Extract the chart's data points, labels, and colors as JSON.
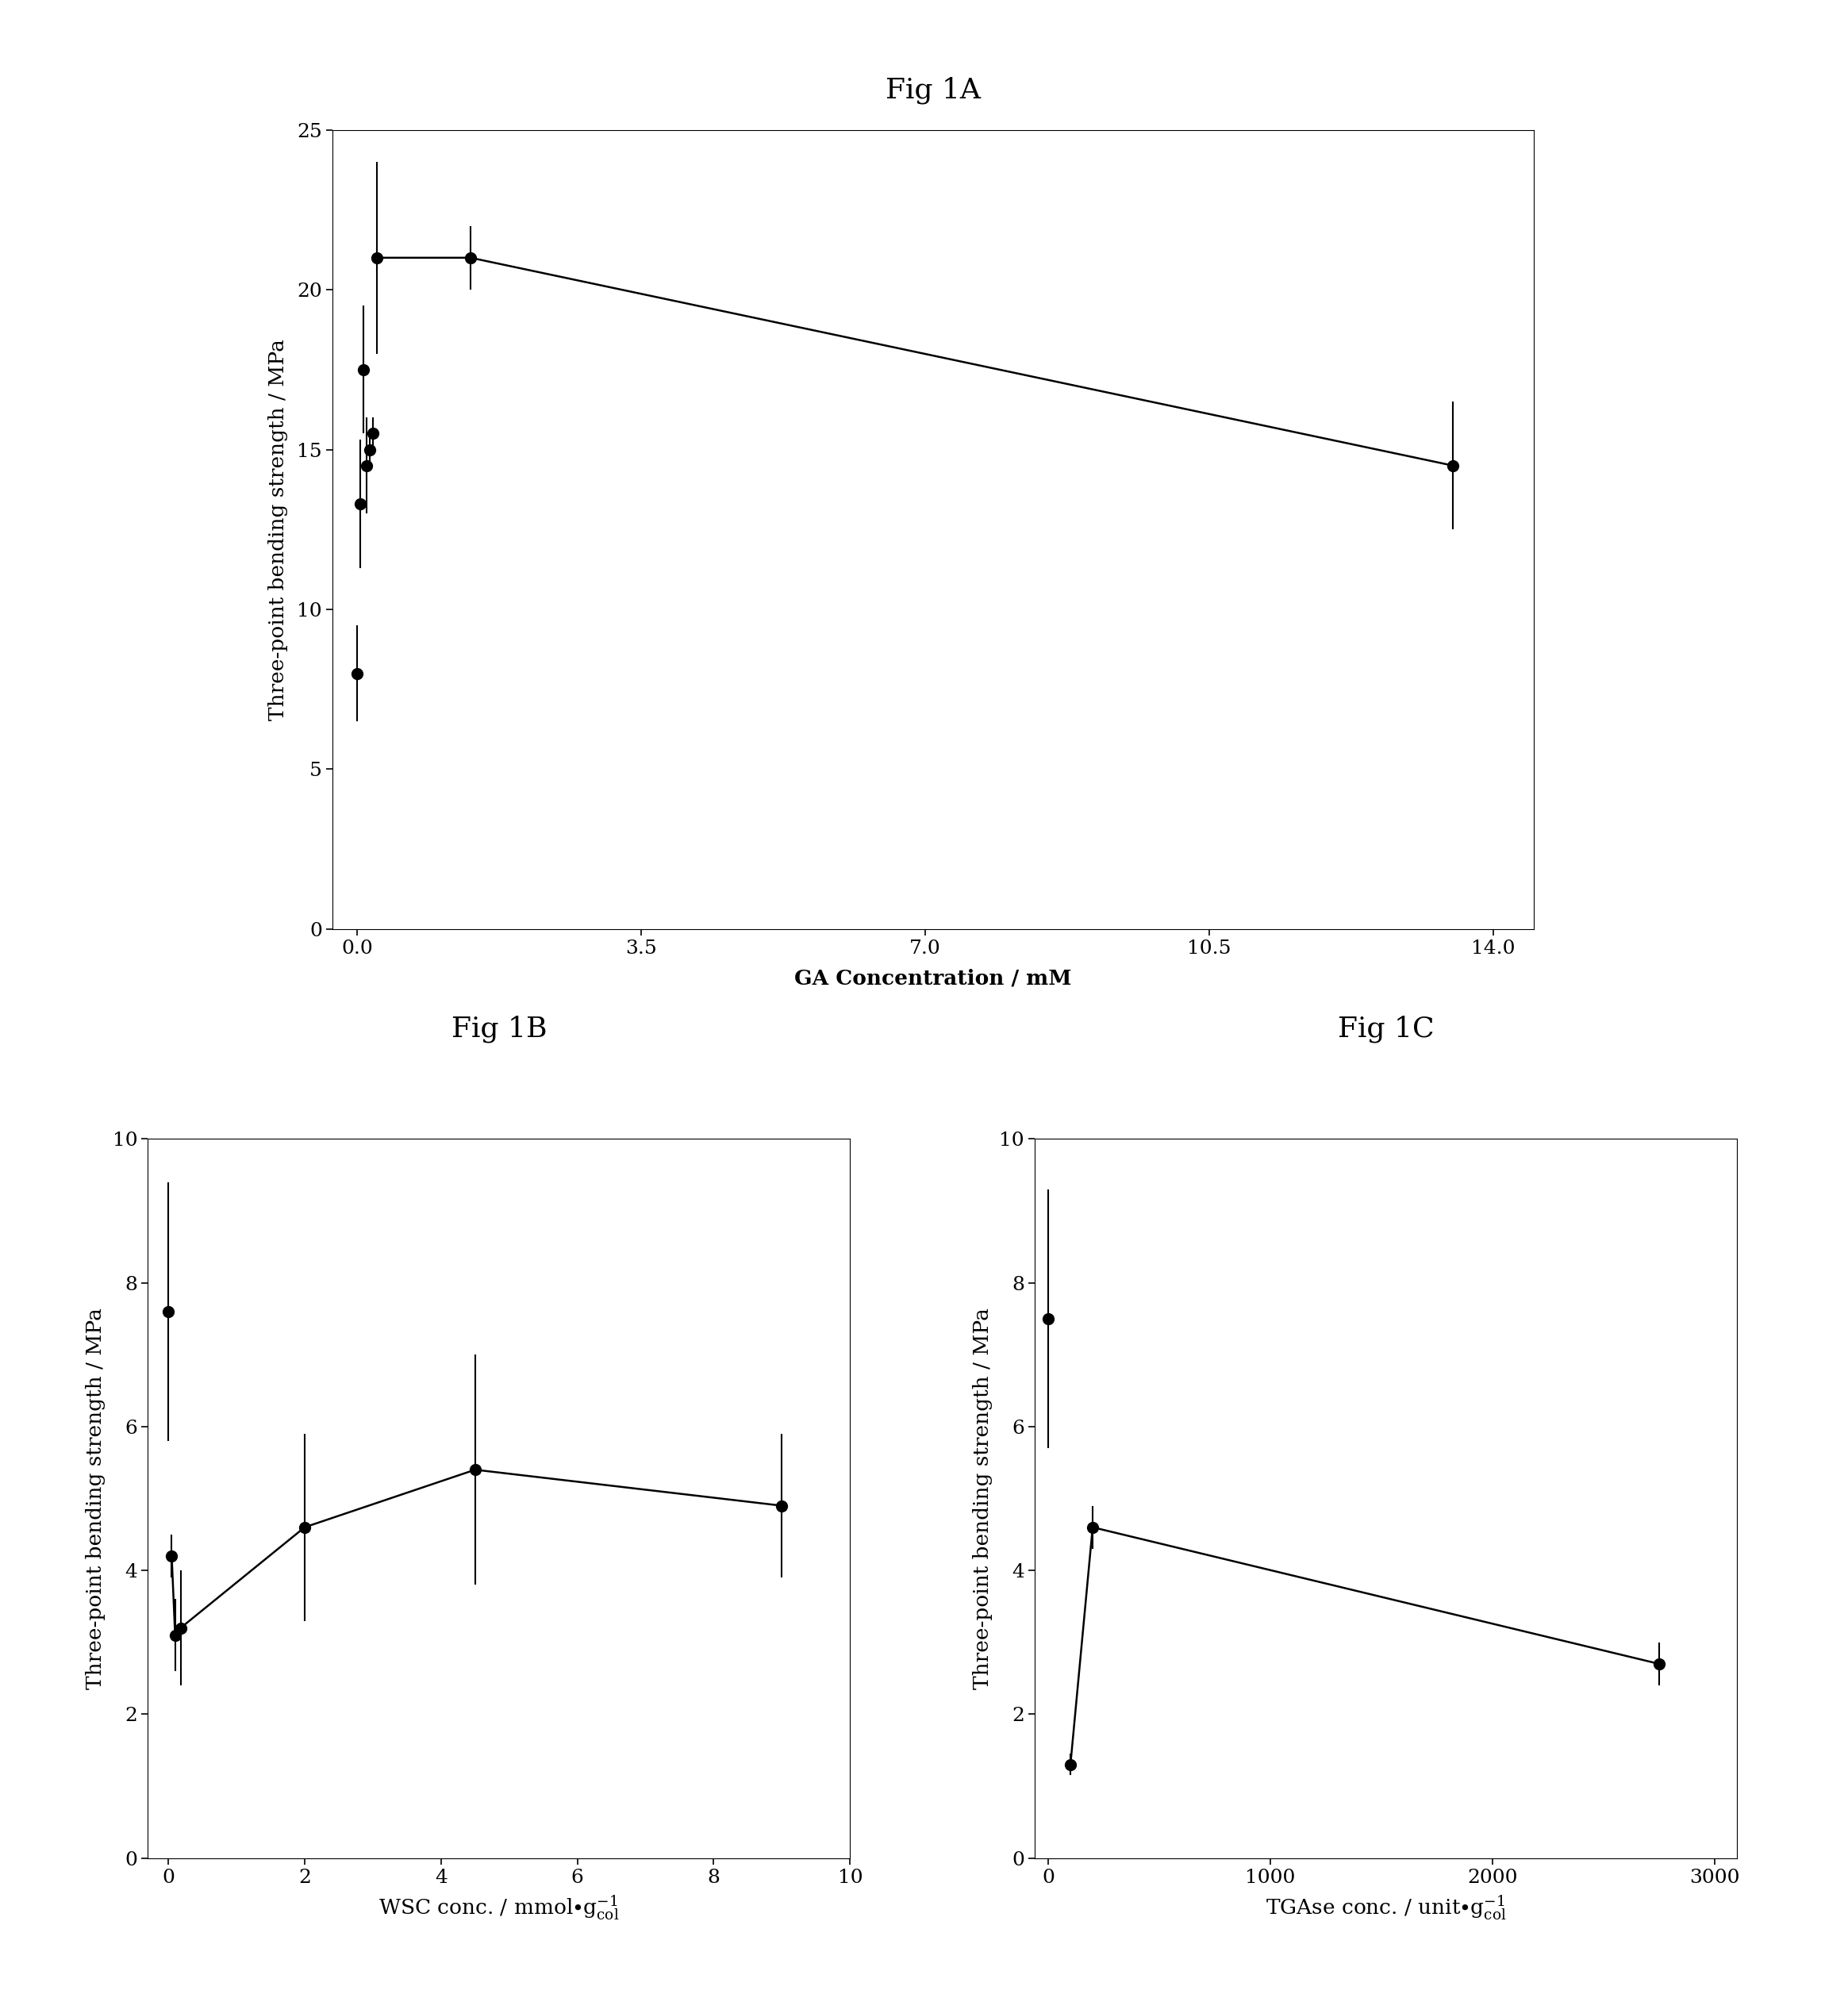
{
  "figA": {
    "title": "Fig 1A",
    "xlabel": "GA Concentration / mM",
    "ylabel": "Three-point bending strength / MPa",
    "xlim": [
      -0.3,
      14.5
    ],
    "ylim": [
      0,
      25
    ],
    "xticks": [
      0,
      3.5,
      7,
      10.5,
      14
    ],
    "yticks": [
      0,
      5,
      10,
      15,
      20,
      25
    ],
    "x": [
      0,
      0.04,
      0.08,
      0.12,
      0.16,
      0.2,
      0.25,
      1.4,
      13.5
    ],
    "y": [
      8.0,
      13.3,
      17.5,
      14.5,
      15.0,
      15.5,
      21.0,
      21.0,
      14.5
    ],
    "yerr": [
      1.5,
      2.0,
      2.0,
      1.5,
      0.5,
      0.5,
      3.0,
      1.0,
      2.0
    ],
    "line_x": [
      0.25,
      1.4,
      13.5
    ],
    "line_y": [
      21.0,
      21.0,
      14.5
    ]
  },
  "figB": {
    "title": "Fig 1B",
    "ylabel": "Three-point bending strength / MPa",
    "xlim": [
      -0.3,
      10
    ],
    "ylim": [
      0,
      10
    ],
    "xticks": [
      0,
      2,
      4,
      6,
      8,
      10
    ],
    "yticks": [
      0,
      2,
      4,
      6,
      8,
      10
    ],
    "x": [
      0,
      0.05,
      0.1,
      0.18,
      2.0,
      4.5,
      9.0
    ],
    "y": [
      7.6,
      4.2,
      3.1,
      3.2,
      4.6,
      5.4,
      4.9
    ],
    "yerr": [
      1.8,
      0.3,
      0.5,
      0.8,
      1.3,
      1.6,
      1.0
    ],
    "line_x": [
      0.05,
      0.1,
      0.18,
      2.0,
      4.5,
      9.0
    ],
    "line_y": [
      4.2,
      3.1,
      3.2,
      4.6,
      5.4,
      4.9
    ]
  },
  "figC": {
    "title": "Fig 1C",
    "ylabel": "Three-point bending strength / MPa",
    "xlim": [
      -60,
      3100
    ],
    "ylim": [
      0,
      10
    ],
    "xticks": [
      0,
      1000,
      2000,
      3000
    ],
    "yticks": [
      0,
      2,
      4,
      6,
      8,
      10
    ],
    "x": [
      0,
      100,
      200,
      2750
    ],
    "y": [
      7.5,
      1.3,
      4.6,
      2.7
    ],
    "yerr": [
      1.8,
      0.15,
      0.3,
      0.3
    ],
    "line_x": [
      100,
      200,
      2750
    ],
    "line_y": [
      1.3,
      4.6,
      2.7
    ]
  },
  "title_fontsize": 26,
  "label_fontsize": 19,
  "tick_fontsize": 18,
  "marker_size": 11,
  "linewidth": 1.8,
  "capsize": 4,
  "elinewidth": 1.5,
  "background_color": "#ffffff",
  "data_color": "#000000"
}
